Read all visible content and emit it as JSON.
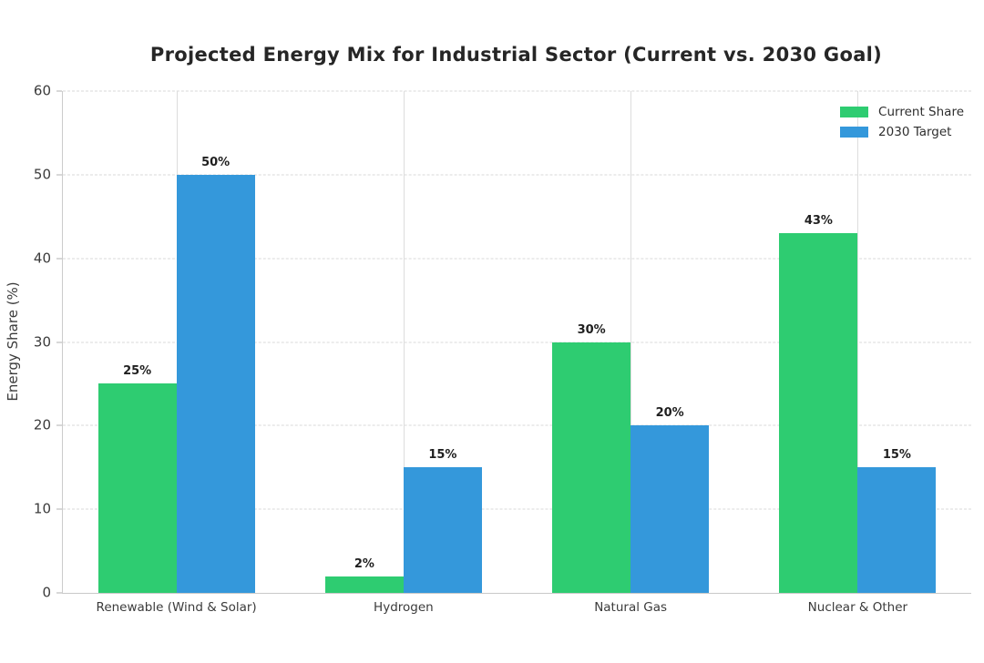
{
  "title": "Projected Energy Mix for Industrial Sector (Current vs. 2030 Goal)",
  "chart_data": {
    "type": "bar",
    "title": "Projected Energy Mix for Industrial Sector (Current vs. 2030 Goal)",
    "categories": [
      "Renewable (Wind & Solar)",
      "Hydrogen",
      "Natural Gas",
      "Nuclear & Other"
    ],
    "series": [
      {
        "name": "Current Share",
        "color": "#2ecc71",
        "values": [
          25,
          2,
          30,
          43
        ],
        "value_labels": [
          "25%",
          "2%",
          "30%",
          "43%"
        ]
      },
      {
        "name": "2030 Target",
        "color": "#3498db",
        "values": [
          50,
          15,
          20,
          15
        ],
        "value_labels": [
          "50%",
          "15%",
          "20%",
          "15%"
        ]
      }
    ],
    "xlabel": "",
    "ylabel": "Energy Share (%)",
    "ylim": [
      0,
      60
    ],
    "yticks": [
      0,
      10,
      20,
      30,
      40,
      50,
      60
    ],
    "grid": {
      "horizontal": "dashed",
      "vertical": "solid at category centers"
    },
    "legend_position": "upper right"
  },
  "legend": {
    "items": [
      {
        "label": "Current Share",
        "color": "#2ecc71"
      },
      {
        "label": "2030 Target",
        "color": "#3498db"
      }
    ]
  }
}
